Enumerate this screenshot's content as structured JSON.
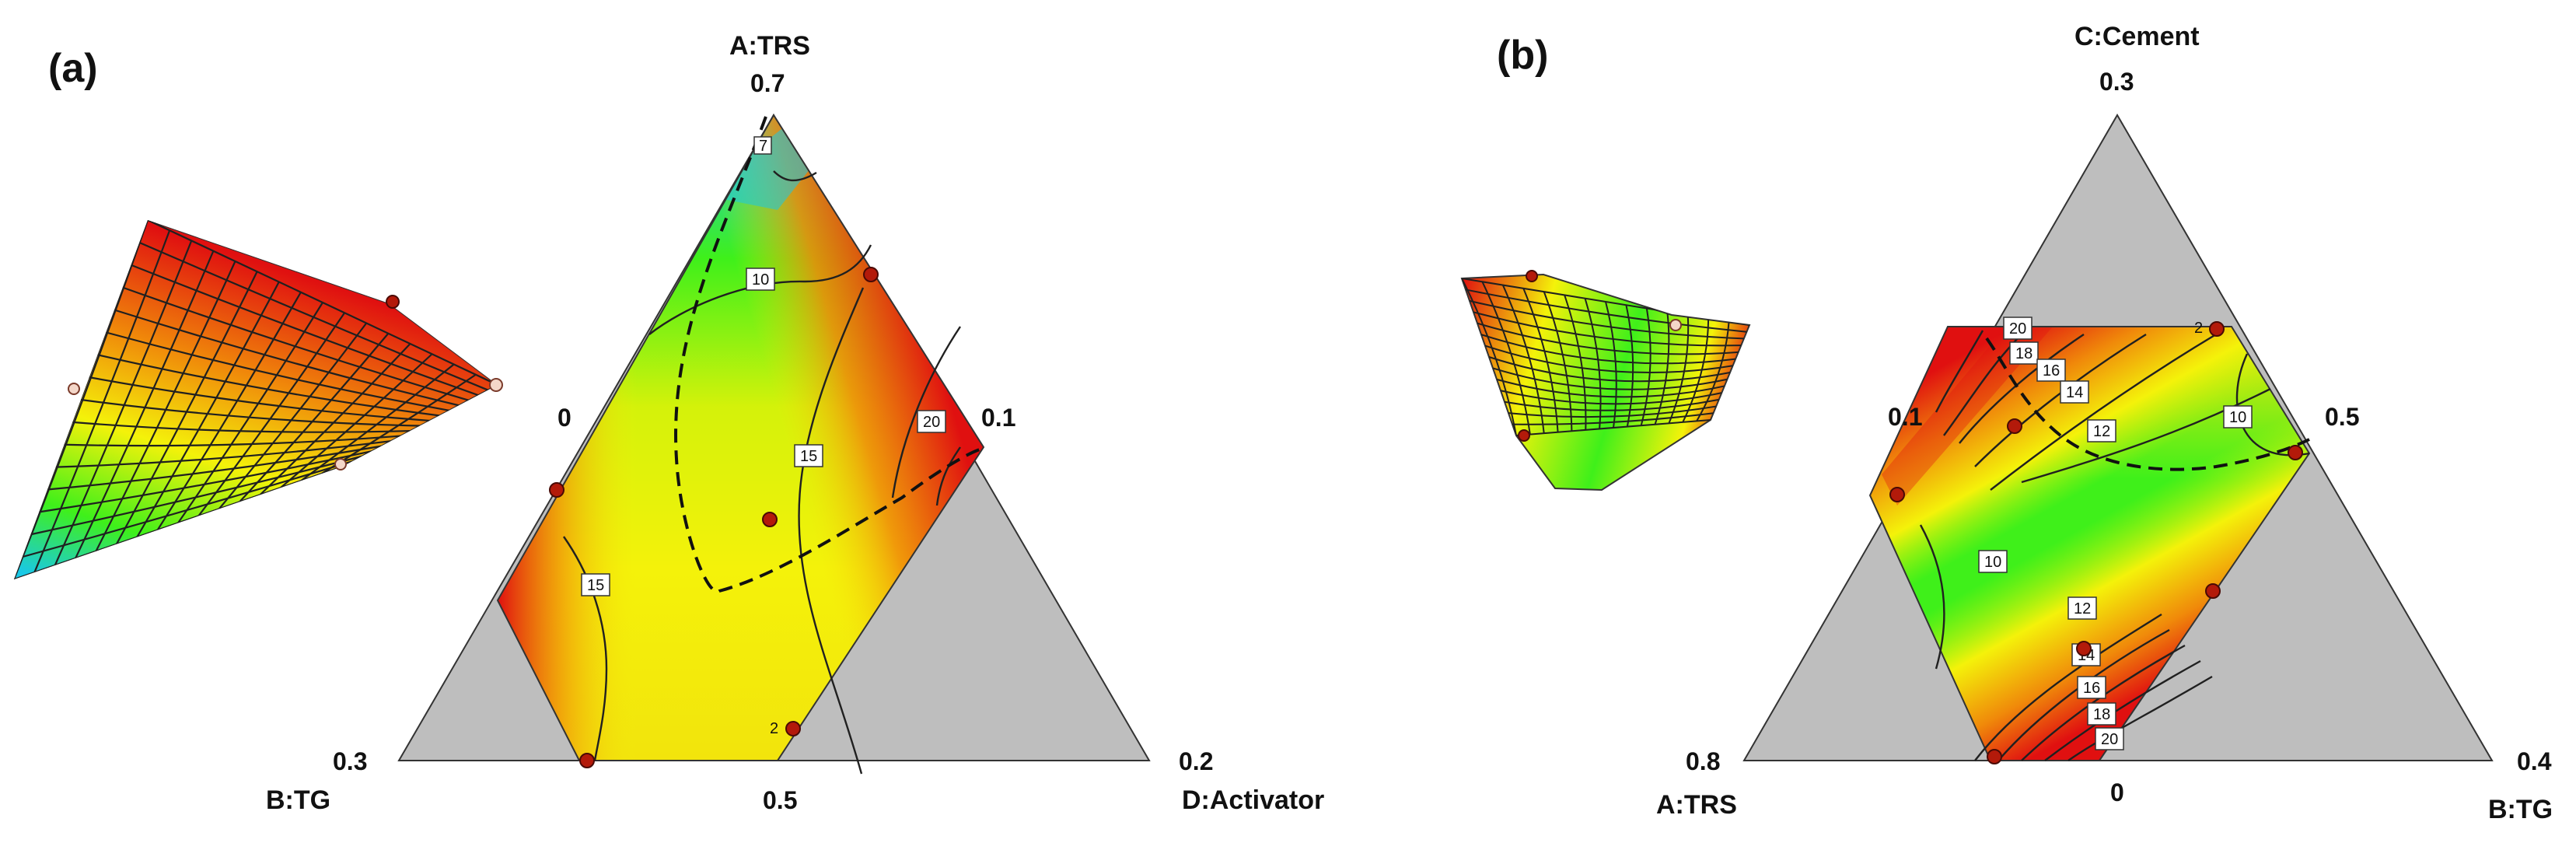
{
  "colors": {
    "low": "#19c8e6",
    "mid_low": "#3ff01a",
    "mid": "#f4f20a",
    "high": "#f08a0a",
    "max": "#e01010",
    "constraint_grey": "#bebebe",
    "design_point": "#b31a0a"
  },
  "panels": [
    {
      "id": "a",
      "panel_label": "(a)",
      "vertex_labels": {
        "top": "A:TRS",
        "left": "B:TG",
        "right": "D:Activator"
      },
      "ticks": {
        "top": "0.7",
        "left": "0.3",
        "right": "0.2",
        "bottom": "0.5",
        "mid_left": "0",
        "mid_right": "0.1"
      }
    },
    {
      "id": "b",
      "panel_label": "(b)",
      "vertex_labels": {
        "top": "C:Cement",
        "left": "A:TRS",
        "right": "B:TG"
      },
      "ticks": {
        "top": "0.3",
        "left": "0.8",
        "right": "0.4",
        "bottom": "0",
        "mid_left": "0.1",
        "mid_right": "0.5"
      }
    }
  ],
  "chart_data": [
    {
      "type": "heatmap",
      "subtype": "ternary mixture contour plot with 3D response surface inset",
      "panel": "(a)",
      "components": [
        "A:TRS",
        "B:TG",
        "D:Activator"
      ],
      "component_ranges": {
        "A:TRS": [
          0.5,
          0.7
        ],
        "B:TG": [
          0,
          0.3
        ],
        "D:Activator": [
          0,
          0.2
        ]
      },
      "contour_levels": [
        10,
        15,
        15,
        20
      ],
      "color_scale": "blue (low) - green - yellow - red (high)",
      "design_points": 8,
      "dashed_boundary": true
    },
    {
      "type": "heatmap",
      "subtype": "ternary mixture contour plot with 3D response surface inset",
      "panel": "(b)",
      "components": [
        "C:Cement",
        "A:TRS",
        "B:TG"
      ],
      "component_ranges": {
        "C:Cement": [
          0,
          0.3
        ],
        "A:TRS": [
          0,
          0.8
        ],
        "B:TG": [
          0,
          0.4
        ]
      },
      "contour_levels": [
        10,
        10,
        12,
        12,
        14,
        14,
        16,
        16,
        18,
        18,
        20,
        20
      ],
      "color_scale": "green (low) - yellow - red (high)",
      "design_points": 8,
      "dashed_boundary": true
    }
  ]
}
